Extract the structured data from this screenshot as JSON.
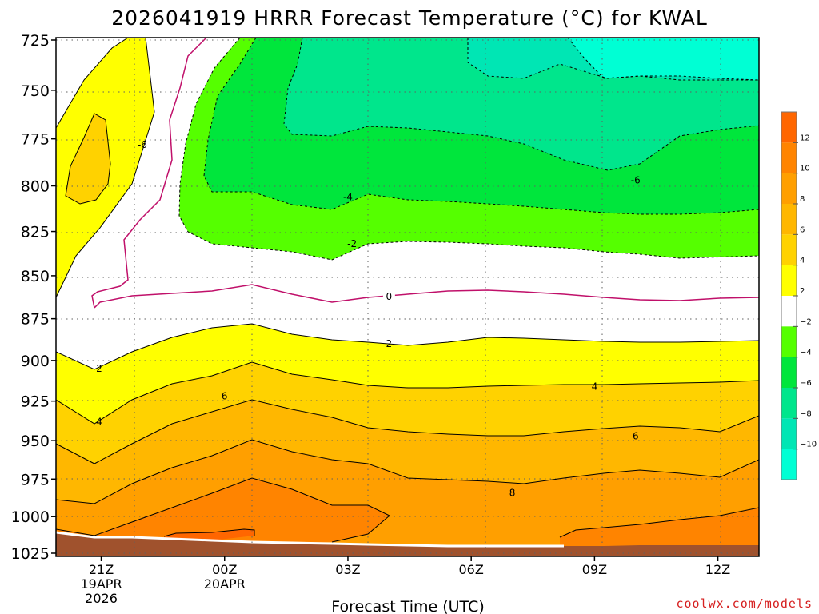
{
  "chart_data": {
    "type": "contour",
    "title": "2026041919 HRRR Forecast Temperature (°C) for KWAL",
    "xlabel": "Forecast Time (UTC)",
    "ylabel": "",
    "x_ticks": [
      {
        "label": "21Z",
        "sub": [
          "19APR",
          "2026"
        ]
      },
      {
        "label": "00Z",
        "sub": [
          "20APR"
        ]
      },
      {
        "label": "03Z",
        "sub": []
      },
      {
        "label": "06Z",
        "sub": []
      },
      {
        "label": "09Z",
        "sub": []
      },
      {
        "label": "12Z",
        "sub": []
      }
    ],
    "x_hours": [
      21,
      24,
      27,
      30,
      33,
      36
    ],
    "x_range_hours": [
      19.9,
      37.0
    ],
    "y_ticks": [
      725,
      750,
      775,
      800,
      825,
      850,
      875,
      900,
      925,
      950,
      975,
      1000,
      1025
    ],
    "y_range": [
      725,
      1025
    ],
    "y_scale": "log-pressure",
    "grid": true,
    "colorbar": {
      "labels": [
        "12",
        "10",
        "8",
        "6",
        "4",
        "2",
        "−2",
        "−4",
        "−6",
        "−8",
        "−10"
      ],
      "colors": [
        "#ff6600",
        "#ff8400",
        "#ff9f00",
        "#ffb700",
        "#ffd200",
        "#ffff00",
        "#ffffff",
        "#55ff00",
        "#00e63c",
        "#00e68c",
        "#00e6b4",
        "#00ffd4"
      ]
    },
    "contour_labels": [
      {
        "t": 22.0,
        "p": 778,
        "text": "-6"
      },
      {
        "t": 34.0,
        "p": 797,
        "text": "-6"
      },
      {
        "t": 27.0,
        "p": 806,
        "text": "-4"
      },
      {
        "t": 27.1,
        "p": 832,
        "text": "-2"
      },
      {
        "t": 28.0,
        "p": 862,
        "text": "0"
      },
      {
        "t": 28.0,
        "p": 890,
        "text": "2"
      },
      {
        "t": 20.95,
        "p": 905,
        "text": "2"
      },
      {
        "t": 33.0,
        "p": 916,
        "text": "4"
      },
      {
        "t": 20.95,
        "p": 938,
        "text": "4"
      },
      {
        "t": 24.0,
        "p": 922,
        "text": "6"
      },
      {
        "t": 34.0,
        "p": 947,
        "text": "6"
      },
      {
        "t": 31.0,
        "p": 984,
        "text": "8"
      }
    ],
    "terrain_color": "#a0522d"
  },
  "credit": "coolwx.com/models"
}
